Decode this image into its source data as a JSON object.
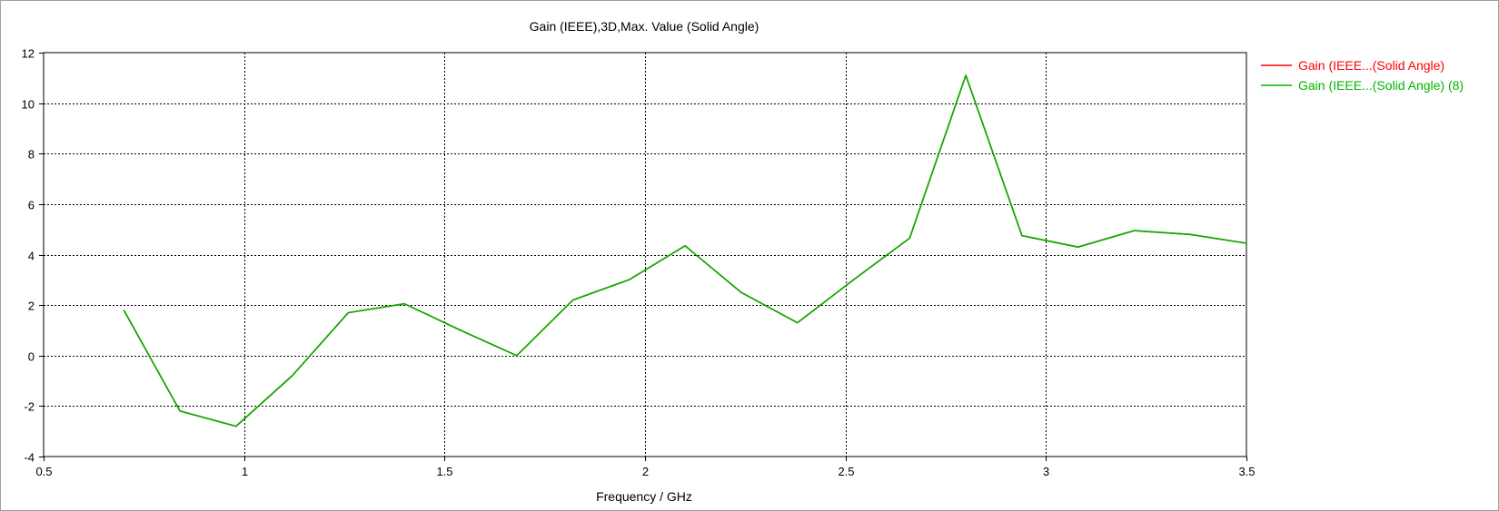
{
  "chart_data": {
    "type": "line",
    "title": "Gain (IEEE),3D,Max. Value (Solid Angle)",
    "xlabel": "Frequency / GHz",
    "ylabel": "",
    "xlim": [
      0.5,
      3.5
    ],
    "ylim": [
      -4,
      12
    ],
    "x_ticks": [
      0.5,
      1,
      1.5,
      2,
      2.5,
      3,
      3.5
    ],
    "x_tick_labels": [
      "0.5",
      "1",
      "1.5",
      "2",
      "2.5",
      "3",
      "3.5"
    ],
    "y_ticks": [
      -4,
      -2,
      0,
      2,
      4,
      6,
      8,
      10,
      12
    ],
    "y_tick_labels": [
      "-4",
      "-2",
      "0",
      "2",
      "4",
      "6",
      "8",
      "10",
      "12"
    ],
    "grid": true,
    "legend_position": "top-right",
    "series": [
      {
        "name": "Gain (IEEE...(Solid Angle)",
        "color": "#ff0000",
        "x": [
          0.7,
          0.84,
          0.98,
          1.12,
          1.26,
          1.4,
          1.54,
          1.68,
          1.82,
          1.96,
          2.1,
          2.24,
          2.38,
          2.52,
          2.66,
          2.8,
          2.94,
          3.08,
          3.22,
          3.36,
          3.5
        ],
        "y": [
          1.8,
          -2.2,
          -2.8,
          -0.8,
          1.7,
          2.05,
          1.0,
          0.0,
          2.2,
          3.0,
          4.35,
          2.5,
          1.3,
          3.0,
          4.65,
          11.1,
          4.75,
          4.3,
          4.95,
          4.8,
          4.45
        ]
      },
      {
        "name": "Gain (IEEE...(Solid Angle) (8)",
        "color": "#00b400",
        "x": [
          0.7,
          0.84,
          0.98,
          1.12,
          1.26,
          1.4,
          1.54,
          1.68,
          1.82,
          1.96,
          2.1,
          2.24,
          2.38,
          2.52,
          2.66,
          2.8,
          2.94,
          3.08,
          3.22,
          3.36,
          3.5
        ],
        "y": [
          1.8,
          -2.2,
          -2.8,
          -0.8,
          1.7,
          2.05,
          1.0,
          0.0,
          2.2,
          3.0,
          4.35,
          2.5,
          1.3,
          3.0,
          4.65,
          11.1,
          4.75,
          4.3,
          4.95,
          4.8,
          4.45
        ]
      }
    ]
  }
}
